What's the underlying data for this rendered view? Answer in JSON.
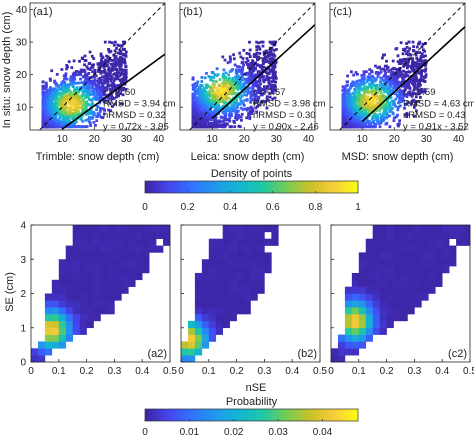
{
  "colors": {
    "colormap": [
      "#3e26a8",
      "#4547f1",
      "#2f75fe",
      "#1f9aea",
      "#12b7cf",
      "#1fc8a4",
      "#76cc54",
      "#c8c12a",
      "#f9cc3a",
      "#f9fb15"
    ],
    "fit_line": "#000000",
    "one_to_one_line": "#000000"
  },
  "colorbars": [
    {
      "title": "Density of points",
      "ticks": [
        "0",
        "0.2",
        "0.4",
        "0.6",
        "0.8",
        "1"
      ],
      "range": [
        0,
        1
      ]
    },
    {
      "title": "Probability",
      "ticks": [
        "0",
        "0.01",
        "0.02",
        "0.03",
        "0.04"
      ],
      "range": [
        0,
        0.048
      ]
    }
  ],
  "top_row": {
    "ylabel": "In situ: snow depth (cm)",
    "y_ticks": [
      "10",
      "20",
      "30",
      "40"
    ],
    "x_ticks": [
      "10",
      "20",
      "30",
      "40"
    ]
  },
  "bottom_row": {
    "ylabel": "SE (cm)",
    "xlabel": "nSE",
    "y_ticks": [
      "0",
      "1",
      "2",
      "3",
      "4"
    ],
    "x_ticks": [
      "0",
      "0.1",
      "0.2",
      "0.3",
      "0.4",
      "0.5"
    ]
  },
  "chart_data": [
    {
      "type": "scatter",
      "panel": "(a1)",
      "xlabel": "Trimble: snow depth (cm)",
      "xlim": [
        0,
        42
      ],
      "ylim": [
        3,
        42
      ],
      "stats": [
        "r = 0.60",
        "RMSD = 3.94 cm",
        "nRMSD = 0.32",
        "y = 0.72x - 3.95"
      ],
      "fit": {
        "slope": 0.72,
        "intercept": -3.95
      },
      "one_to_one": true,
      "density_peak": [
        13,
        11
      ],
      "point_cloud": {
        "x_range": [
          4,
          30
        ],
        "y_range": [
          4,
          30
        ]
      }
    },
    {
      "type": "scatter",
      "panel": "(b1)",
      "xlabel": "Leica: snow depth (cm)",
      "xlim": [
        0,
        42
      ],
      "ylim": [
        3,
        42
      ],
      "stats": [
        "r = 0.67",
        "RMSD = 3.98 cm",
        "nRMSD = 0.30",
        "y = 0.90x - 2.46"
      ],
      "fit": {
        "slope": 0.9,
        "intercept": -2.46
      },
      "one_to_one": true,
      "density_peak": [
        13,
        15
      ],
      "point_cloud": {
        "x_range": [
          4,
          30
        ],
        "y_range": [
          4,
          30
        ]
      }
    },
    {
      "type": "scatter",
      "panel": "(c1)",
      "xlabel": "MSD: snow depth (cm)",
      "xlim": [
        0,
        42
      ],
      "ylim": [
        3,
        42
      ],
      "stats": [
        "r = 0.59",
        "RMSD = 4.63 cm",
        "nRMSD = 0.43",
        "y = 0.91x - 3.52"
      ],
      "fit": {
        "slope": 0.91,
        "intercept": -3.52
      },
      "one_to_one": true,
      "density_peak": [
        13,
        12
      ],
      "point_cloud": {
        "x_range": [
          4,
          30
        ],
        "y_range": [
          4,
          30
        ]
      }
    },
    {
      "type": "heatmap",
      "panel": "(a2)",
      "xlim": [
        0,
        0.5
      ],
      "ylim": [
        0,
        4
      ],
      "peak": [
        0.075,
        0.95
      ],
      "row_extent": [
        [
          0,
          0.055
        ],
        [
          0,
          0.085
        ],
        [
          0.03,
          0.12
        ],
        [
          0.05,
          0.16
        ],
        [
          0.05,
          0.2
        ],
        [
          0.05,
          0.22
        ],
        [
          0.05,
          0.26
        ],
        [
          0.05,
          0.29
        ],
        [
          0.05,
          0.31
        ],
        [
          0.06,
          0.33
        ],
        [
          0.07,
          0.35
        ],
        [
          0.08,
          0.38
        ],
        [
          0.09,
          0.4
        ],
        [
          0.1,
          0.42
        ],
        [
          0.11,
          0.43
        ],
        [
          0.12,
          0.45
        ],
        [
          0.13,
          0.47
        ],
        [
          0.14,
          0.49
        ],
        [
          0.15,
          0.49
        ],
        [
          0.16,
          0.49
        ]
      ],
      "gaps": [
        [
          0.45,
          3.1
        ],
        [
          0.435,
          2.95
        ],
        [
          0.46,
          3.5
        ]
      ]
    },
    {
      "type": "heatmap",
      "panel": "(b2)",
      "xlim": [
        0,
        0.5
      ],
      "ylim": [
        0,
        4
      ],
      "peak": [
        0.03,
        0.65
      ],
      "row_extent": [
        [
          0,
          0.04
        ],
        [
          0,
          0.07
        ],
        [
          0,
          0.1
        ],
        [
          0.02,
          0.13
        ],
        [
          0.03,
          0.15
        ],
        [
          0.03,
          0.18
        ],
        [
          0.04,
          0.21
        ],
        [
          0.04,
          0.24
        ],
        [
          0.04,
          0.26
        ],
        [
          0.04,
          0.28
        ],
        [
          0.05,
          0.29
        ],
        [
          0.05,
          0.3
        ],
        [
          0.06,
          0.31
        ],
        [
          0.07,
          0.32
        ],
        [
          0.08,
          0.32
        ],
        [
          0.09,
          0.33
        ],
        [
          0.1,
          0.33
        ],
        [
          0.11,
          0.35
        ],
        [
          0.14,
          0.35
        ],
        [
          0.15,
          0.35
        ]
      ],
      "gaps": [
        [
          0.32,
          3.35
        ],
        [
          0.31,
          3.7
        ]
      ]
    },
    {
      "type": "heatmap",
      "panel": "(c2)",
      "xlim": [
        0,
        0.5
      ],
      "ylim": [
        0,
        4
      ],
      "peak": [
        0.085,
        1.2
      ],
      "row_extent": [
        [
          0,
          0.06
        ],
        [
          0,
          0.09
        ],
        [
          0.02,
          0.13
        ],
        [
          0.03,
          0.16
        ],
        [
          0.04,
          0.2
        ],
        [
          0.05,
          0.23
        ],
        [
          0.05,
          0.27
        ],
        [
          0.05,
          0.3
        ],
        [
          0.05,
          0.33
        ],
        [
          0.05,
          0.35
        ],
        [
          0.06,
          0.37
        ],
        [
          0.07,
          0.39
        ],
        [
          0.08,
          0.41
        ],
        [
          0.09,
          0.43
        ],
        [
          0.1,
          0.45
        ],
        [
          0.11,
          0.46
        ],
        [
          0.12,
          0.47
        ],
        [
          0.13,
          0.49
        ],
        [
          0.14,
          0.49
        ],
        [
          0.15,
          0.49
        ]
      ],
      "gaps": [
        [
          0.44,
          3.45
        ],
        [
          0.46,
          3.3
        ]
      ]
    }
  ]
}
